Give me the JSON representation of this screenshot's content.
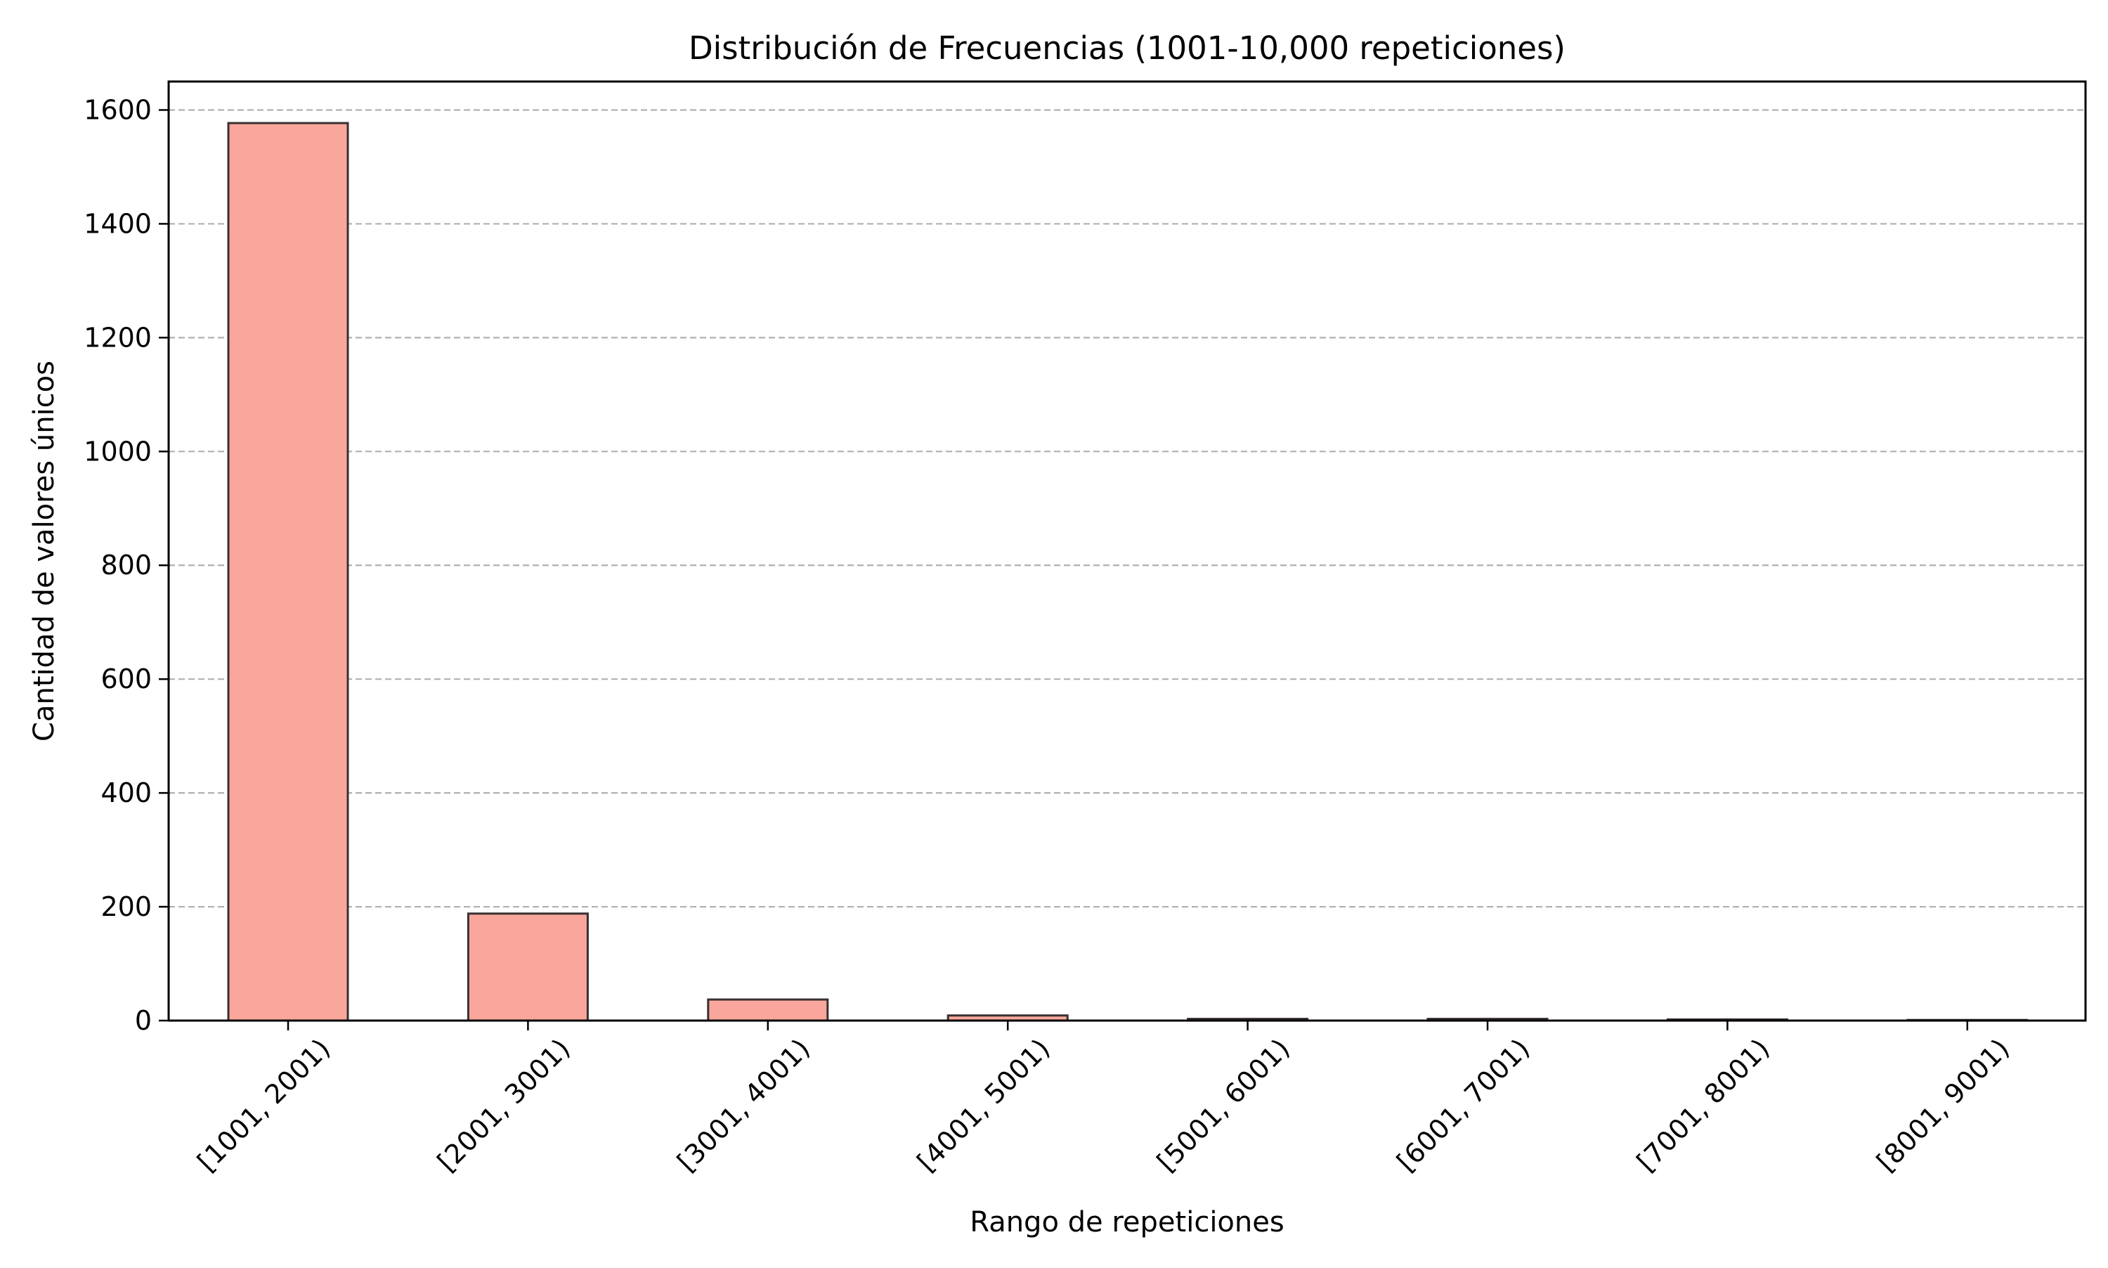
{
  "chart_data": {
    "type": "bar",
    "title": "Distribución de Frecuencias (1001-10,000 repeticiones)",
    "xlabel": "Rango de repeticiones",
    "ylabel": "Cantidad de valores únicos",
    "categories": [
      "[1001, 2001)",
      "[2001, 3001)",
      "[3001, 4001)",
      "[4001, 5001)",
      "[5001, 6001)",
      "[6001, 7001)",
      "[7001, 8001)",
      "[8001, 9001)"
    ],
    "values": [
      1577,
      188,
      37,
      9,
      3,
      3,
      2,
      1
    ],
    "ylim": [
      0,
      1650
    ],
    "yticks": [
      0,
      200,
      400,
      600,
      800,
      1000,
      1200,
      1400,
      1600
    ],
    "grid": "y-dashed",
    "bar_color": "#f9a79c",
    "bar_edge_color": "#3a3030",
    "grid_color": "#b0b0b0"
  }
}
